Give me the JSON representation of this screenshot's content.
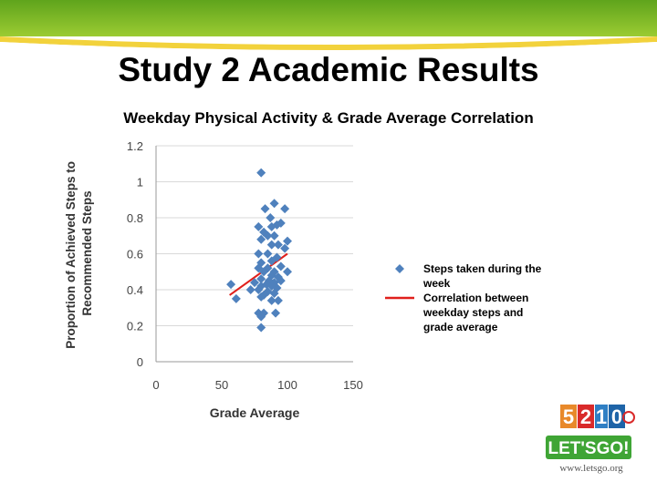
{
  "slide": {
    "title": "Study 2 Academic Results",
    "subtitle": "Weekday Physical Activity & Grade Average Correlation"
  },
  "legend": {
    "points_label": "Steps taken during the week",
    "line_label": "Correlation between weekday steps and grade average"
  },
  "logo": {
    "digits": [
      "5",
      "2",
      "1",
      "0"
    ],
    "wordmark": "LET'SGO!",
    "url": "www.letsgo.org"
  },
  "colors": {
    "points": "#4F81BD",
    "trendline": "#E0201C",
    "banner_top": "#7FB824",
    "banner_stripe": "#F2D23C"
  },
  "chart_data": {
    "type": "scatter",
    "title": "",
    "xlabel": "Grade Average",
    "ylabel": "Proportion of Achieved Steps to Recommended Steps",
    "xlim": [
      0,
      150
    ],
    "ylim": [
      0,
      1.2
    ],
    "xticks": [
      "0",
      "50",
      "100",
      "150"
    ],
    "yticks": [
      "0",
      "0.2",
      "0.4",
      "0.6",
      "0.8",
      "1",
      "1.2"
    ],
    "grid": "horizontal",
    "legend_position": "right",
    "series": [
      {
        "name": "Steps taken during the week",
        "points": [
          [
            80,
            1.05
          ],
          [
            90,
            0.88
          ],
          [
            83,
            0.85
          ],
          [
            98,
            0.85
          ],
          [
            87,
            0.8
          ],
          [
            78,
            0.75
          ],
          [
            95,
            0.77
          ],
          [
            92,
            0.76
          ],
          [
            88,
            0.75
          ],
          [
            82,
            0.72
          ],
          [
            85,
            0.7
          ],
          [
            90,
            0.7
          ],
          [
            80,
            0.68
          ],
          [
            100,
            0.67
          ],
          [
            93,
            0.65
          ],
          [
            88,
            0.65
          ],
          [
            98,
            0.63
          ],
          [
            85,
            0.6
          ],
          [
            78,
            0.6
          ],
          [
            92,
            0.58
          ],
          [
            88,
            0.56
          ],
          [
            80,
            0.55
          ],
          [
            95,
            0.53
          ],
          [
            85,
            0.52
          ],
          [
            78,
            0.52
          ],
          [
            90,
            0.5
          ],
          [
            100,
            0.5
          ],
          [
            82,
            0.5
          ],
          [
            88,
            0.48
          ],
          [
            93,
            0.47
          ],
          [
            80,
            0.46
          ],
          [
            86,
            0.45
          ],
          [
            95,
            0.45
          ],
          [
            75,
            0.44
          ],
          [
            90,
            0.44
          ],
          [
            84,
            0.43
          ],
          [
            57,
            0.43
          ],
          [
            80,
            0.42
          ],
          [
            88,
            0.42
          ],
          [
            92,
            0.41
          ],
          [
            72,
            0.4
          ],
          [
            78,
            0.4
          ],
          [
            85,
            0.39
          ],
          [
            90,
            0.38
          ],
          [
            82,
            0.37
          ],
          [
            80,
            0.36
          ],
          [
            61,
            0.35
          ],
          [
            88,
            0.34
          ],
          [
            93,
            0.34
          ],
          [
            78,
            0.27
          ],
          [
            82,
            0.27
          ],
          [
            91,
            0.27
          ],
          [
            80,
            0.25
          ],
          [
            80,
            0.19
          ]
        ]
      }
    ],
    "trendline": {
      "name": "Correlation between weekday steps and grade average",
      "from": [
        56,
        0.37
      ],
      "to": [
        100,
        0.6
      ]
    }
  }
}
